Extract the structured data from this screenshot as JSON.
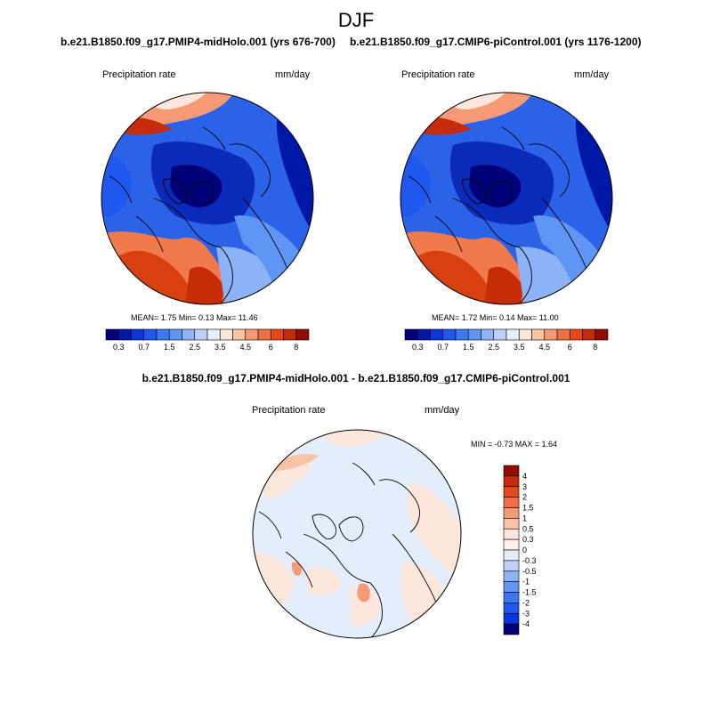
{
  "title": "DJF",
  "panel_a": {
    "case_title": "b.e21.B1850.f09_g17.PMIP4-midHolo.001 (yrs 676-700)",
    "left_label": "Precipitation rate",
    "right_label": "mm/day",
    "stats": "MEAN=   1.75  Min=   0.13  Max=  11.46"
  },
  "panel_b": {
    "case_title": "b.e21.B1850.f09_g17.CMIP6-piControl.001 (yrs 1176-1200)",
    "left_label": "Precipitation rate",
    "right_label": "mm/day",
    "stats": "MEAN=   1.72  Min=   0.14  Max=  11.00"
  },
  "panel_diff": {
    "title": "b.e21.B1850.f09_g17.PMIP4-midHolo.001 - b.e21.B1850.f09_g17.CMIP6-piControl.001",
    "left_label": "Precipitation rate",
    "right_label": "mm/day",
    "stats": "MIN =  -0.73 MAX =   1.64"
  },
  "colorbar_abs": {
    "tick_labels": [
      "0.3",
      "0.7",
      "1.5",
      "2.5",
      "3.5",
      "4.5",
      "6",
      "8"
    ],
    "colors": [
      "#00007a",
      "#0018a8",
      "#0a35d8",
      "#1f58ee",
      "#3d78f2",
      "#5f95f4",
      "#8db2f5",
      "#bcd1f7",
      "#e8f0fb",
      "#fde6da",
      "#f9c3a6",
      "#f59a74",
      "#f06e44",
      "#e24a1e",
      "#c62b0a",
      "#8f0f00"
    ]
  },
  "colorbar_diff": {
    "tick_labels": [
      "4",
      "3",
      "2",
      "1.5",
      "1",
      "0.5",
      "0.3",
      "0",
      "-0.3",
      "-0.5",
      "-1",
      "-1.5",
      "-2",
      "-3",
      "-4"
    ],
    "colors": [
      "#8f0f00",
      "#c62b0a",
      "#e24a1e",
      "#f06e44",
      "#f59a74",
      "#f9c3a6",
      "#fde6da",
      "#fdf3ea",
      "#e4eefb",
      "#bcd1f7",
      "#8db2f5",
      "#5f95f4",
      "#3d78f2",
      "#1f58ee",
      "#0a35d8",
      "#00007a"
    ]
  }
}
